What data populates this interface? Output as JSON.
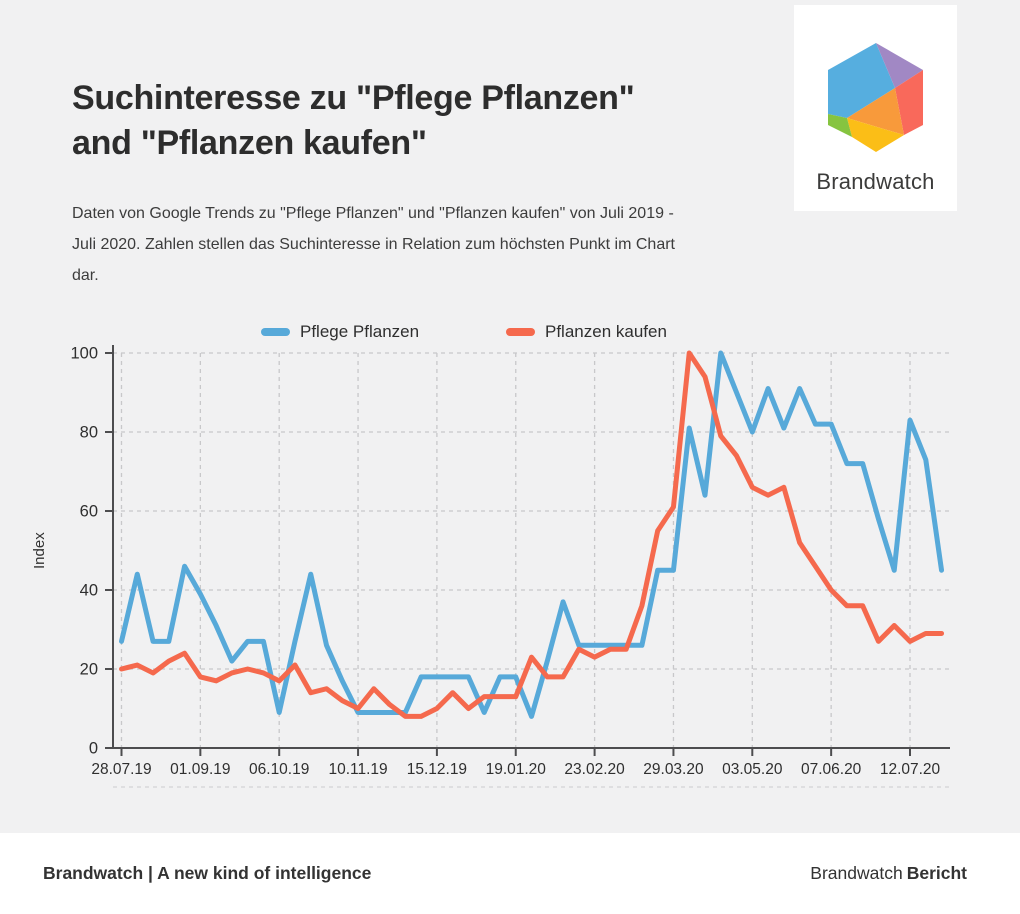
{
  "page": {
    "background": "#F1F1F2",
    "title_line1": "Suchinteresse zu \"Pflege Pflanzen\"",
    "title_line2": "and \"Pflanzen kaufen\"",
    "subtitle": "Daten von Google Trends zu \"Pflege Pflanzen\" und \"Pflanzen kaufen\" von Juli 2019 - Juli 2020.  Zahlen stellen das Suchinteresse in Relation zum höchsten Punkt im Chart dar."
  },
  "logo": {
    "brand": "Brandwatch"
  },
  "footer": {
    "left_text": "Brandwatch | A new kind of intelligence",
    "right_regular": "Brandwatch",
    "right_bold": "Bericht"
  },
  "chart_data": {
    "type": "line",
    "title": "",
    "xlabel": "",
    "ylabel": "Index",
    "ylim": [
      0,
      100
    ],
    "y_ticks": [
      0,
      20,
      40,
      60,
      80,
      100
    ],
    "x_tick_labels": [
      "28.07.19",
      "01.09.19",
      "06.10.19",
      "10.11.19",
      "15.12.19",
      "19.01.20",
      "23.02.20",
      "29.03.20",
      "03.05.20",
      "07.06.20",
      "12.07.20"
    ],
    "x_tick_weeks": [
      0,
      5,
      10,
      15,
      20,
      25,
      30,
      35,
      40,
      45,
      50
    ],
    "x_unit": "week",
    "grid": "dashed",
    "legend_position": "top",
    "colors": {
      "blue": "#57A9D9",
      "red": "#F5694D",
      "gridline": "#C8C8CA",
      "axis": "#4D4D4F",
      "tick_text": "#2F2F2F"
    },
    "series": [
      {
        "name": "Pflege Pflanzen",
        "color": "#57A9D9",
        "values": [
          27,
          44,
          27,
          27,
          46,
          39,
          31,
          22,
          27,
          27,
          9,
          27,
          44,
          26,
          17,
          9,
          9,
          9,
          9,
          18,
          18,
          18,
          18,
          9,
          18,
          18,
          8,
          22,
          37,
          26,
          26,
          26,
          26,
          26,
          45,
          45,
          81,
          64,
          100,
          90,
          80,
          91,
          81,
          91,
          82,
          82,
          72,
          72,
          58,
          45,
          83,
          73,
          45
        ]
      },
      {
        "name": "Pflanzen kaufen",
        "color": "#F5694D",
        "values": [
          20,
          21,
          19,
          22,
          24,
          18,
          17,
          19,
          20,
          19,
          17,
          21,
          14,
          15,
          12,
          10,
          15,
          11,
          8,
          8,
          10,
          14,
          10,
          13,
          13,
          13,
          23,
          18,
          18,
          25,
          23,
          25,
          25,
          36,
          55,
          61,
          100,
          94,
          79,
          74,
          66,
          64,
          66,
          52,
          46,
          40,
          36,
          36,
          27,
          31,
          27,
          29,
          29
        ]
      }
    ]
  }
}
